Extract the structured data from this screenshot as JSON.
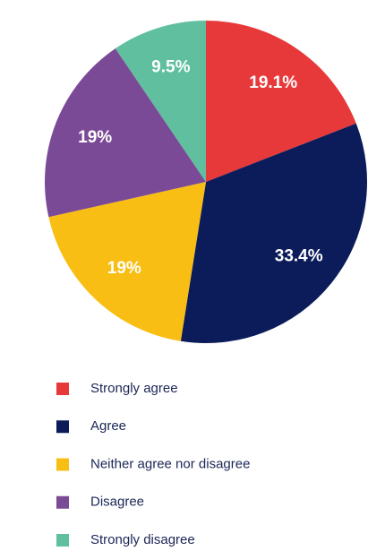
{
  "chart_data": {
    "type": "pie",
    "categories": [
      "Strongly agree",
      "Agree",
      "Neither agree nor disagree",
      "Disagree",
      "Strongly disagree"
    ],
    "values": [
      19.1,
      33.4,
      19,
      19,
      9.5
    ],
    "value_labels": [
      "19.1%",
      "33.4%",
      "19%",
      "19%",
      "9.5%"
    ],
    "colors": [
      "#e8393a",
      "#0c1c5a",
      "#f8be14",
      "#7b4a96",
      "#5fbf9f"
    ],
    "legend": "bottom"
  }
}
